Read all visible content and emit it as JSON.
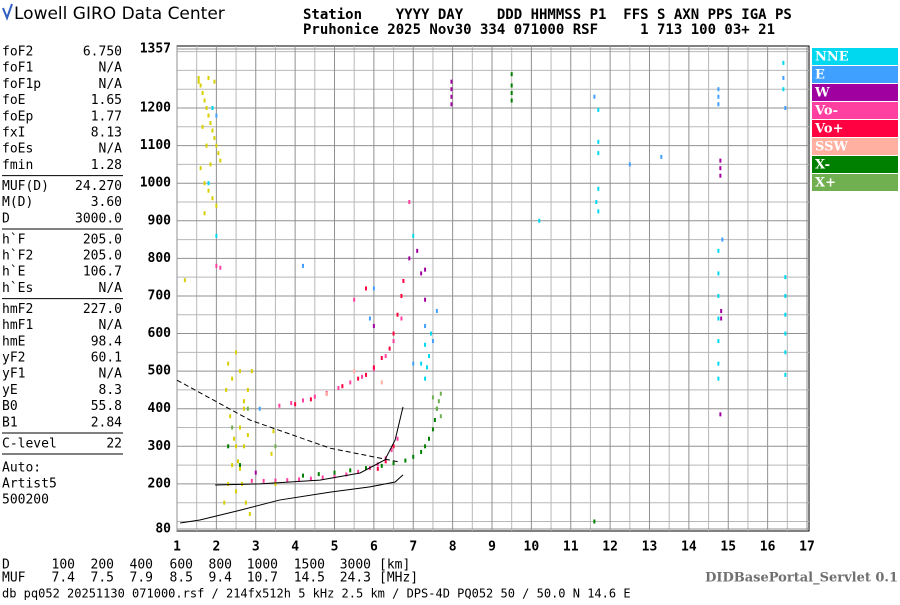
{
  "header": {
    "logo": "Lowell GIRO Data Center",
    "line1": "Station    YYYY DAY    DDD HHMMSS P1  FFS S AXN PPS IGA PS",
    "line2": "Pruhonice 2025 Nov30 334 071000 RSF     1 713 100 03+ 21"
  },
  "parameter_groups": [
    [
      {
        "name": "foF2",
        "value": "6.750"
      },
      {
        "name": "foF1",
        "value": "N/A"
      },
      {
        "name": "foF1p",
        "value": "N/A"
      },
      {
        "name": "foE",
        "value": "1.65"
      },
      {
        "name": "foEp",
        "value": "1.77"
      },
      {
        "name": "fxI",
        "value": "8.13"
      },
      {
        "name": "foEs",
        "value": "N/A"
      },
      {
        "name": "fmin",
        "value": "1.28"
      }
    ],
    [
      {
        "name": "MUF(D)",
        "value": "24.270"
      },
      {
        "name": "M(D)",
        "value": "3.60"
      },
      {
        "name": "D",
        "value": "3000.0"
      }
    ],
    [
      {
        "name": "h`F",
        "value": "205.0"
      },
      {
        "name": "h`F2",
        "value": "205.0"
      },
      {
        "name": "h`E",
        "value": "106.7"
      },
      {
        "name": "h`Es",
        "value": "N/A"
      }
    ],
    [
      {
        "name": "hmF2",
        "value": "227.0"
      },
      {
        "name": "hmF1",
        "value": "N/A"
      },
      {
        "name": "hmE",
        "value": "98.4"
      },
      {
        "name": "yF2",
        "value": "60.1"
      },
      {
        "name": "yF1",
        "value": "N/A"
      },
      {
        "name": "yE",
        "value": "8.3"
      },
      {
        "name": "B0",
        "value": "55.8"
      },
      {
        "name": "B1",
        "value": "2.84"
      }
    ],
    [
      {
        "name": "C-level",
        "value": "22"
      }
    ]
  ],
  "auto": [
    "Auto:",
    "Artist5",
    "500200"
  ],
  "distance_row": {
    "label": "D",
    "values": [
      "100",
      "200",
      "400",
      "600",
      "800",
      "1000",
      "1500",
      "3000"
    ],
    "unit": "[km]"
  },
  "muf_row": {
    "label": "MUF",
    "values": [
      "7.4",
      "7.5",
      "7.9",
      "8.5",
      "9.4",
      "10.7",
      "14.5",
      "24.3"
    ],
    "unit": "[MHz]"
  },
  "footer": "db pq052 20251130 071000.rsf / 214fx512h 5 kHz 2.5 km / DPS-4D PQ052 50 / 50.0 N 14.6 E",
  "servlet": "DIDBasePortal_Servlet 0.1",
  "chart_data": {
    "type": "scatter",
    "xlim": [
      1,
      17
    ],
    "xticks": [
      1,
      2,
      3,
      4,
      5,
      6,
      7,
      8,
      9,
      10,
      11,
      12,
      13,
      14,
      15,
      16,
      17
    ],
    "xgrid": [
      1.5,
      2.5,
      3.5,
      4.5,
      5.5,
      6.5,
      7.5,
      8.5,
      9.5,
      10.5,
      11.5,
      12.5,
      13.5,
      14.5,
      15.5,
      16.5
    ],
    "ylim": [
      80,
      1357
    ],
    "yticks": [
      80,
      200,
      300,
      400,
      500,
      600,
      700,
      800,
      900,
      1000,
      1100,
      1200,
      1357
    ],
    "ygrid": [
      100,
      150,
      250,
      350,
      450,
      550,
      650,
      750,
      850,
      950,
      1050,
      1150,
      1250,
      1300,
      1350
    ],
    "grid": true,
    "series": [
      {
        "name": "NNE",
        "color": "#00d8f0",
        "x": [
          11.7,
          11.7,
          11.7,
          11.7,
          11.65,
          11.7,
          14.75,
          14.75,
          14.75,
          14.75,
          14.75,
          14.75,
          14.75,
          16.45,
          16.45,
          16.45,
          16.45,
          16.45,
          16.45,
          16.4,
          16.4,
          7.3,
          7.35,
          7.4,
          7.3,
          7.2,
          7.45,
          1.9,
          2.0,
          1.8,
          10.2,
          7.0
        ],
        "y": [
          1195,
          1110,
          1080,
          985,
          950,
          925,
          820,
          760,
          700,
          640,
          580,
          520,
          480,
          750,
          700,
          650,
          600,
          550,
          490,
          1320,
          1250,
          480,
          510,
          540,
          570,
          520,
          600,
          1200,
          860,
          1000,
          900,
          860
        ]
      },
      {
        "name": "E",
        "color": "#40a0ff",
        "x": [
          14.75,
          14.75,
          14.75,
          16.4,
          16.45,
          7.3,
          7.5,
          7.6,
          7.0,
          2.0,
          3.1,
          6.0,
          4.2,
          5.9,
          11.6,
          14.85,
          12.5,
          13.3
        ],
        "y": [
          1230,
          1250,
          1210,
          1280,
          1200,
          620,
          580,
          660,
          520,
          1180,
          400,
          720,
          780,
          640,
          1230,
          850,
          1050,
          1070
        ]
      },
      {
        "name": "W",
        "color": "#a000a0",
        "x": [
          7.97,
          7.97,
          7.97,
          7.97,
          14.8,
          14.8,
          14.8,
          14.82,
          14.82,
          14.8,
          7.1,
          7.2,
          7.3,
          6.9,
          3.0,
          7.3,
          6.0
        ],
        "y": [
          1270,
          1250,
          1230,
          1210,
          1060,
          1040,
          1020,
          660,
          640,
          385,
          820,
          760,
          690,
          800,
          230,
          770,
          620
        ]
      },
      {
        "name": "Vo-",
        "color": "#ff40a0",
        "x": [
          2.9,
          3.2,
          3.5,
          3.8,
          4.1,
          4.4,
          4.7,
          5.0,
          5.3,
          5.6,
          5.9,
          6.1,
          6.3,
          6.45,
          6.6,
          3.6,
          3.9,
          4.2,
          4.5,
          4.8,
          5.1,
          5.4,
          5.7,
          6.0,
          6.3,
          6.5,
          6.7,
          5.5,
          6.9,
          2.0,
          2.1
        ],
        "y": [
          208,
          208,
          209,
          210,
          212,
          214,
          217,
          220,
          225,
          232,
          242,
          252,
          268,
          290,
          320,
          408,
          415,
          422,
          432,
          442,
          455,
          470,
          485,
          505,
          540,
          580,
          640,
          690,
          950,
          780,
          775
        ]
      },
      {
        "name": "Vo+",
        "color": "#ff0040",
        "x": [
          4.0,
          4.4,
          4.8,
          5.2,
          5.6,
          5.8,
          6.0,
          6.2,
          6.4,
          6.5,
          6.6,
          6.7,
          6.75,
          6.1,
          6.3,
          5.8,
          6.5
        ],
        "y": [
          412,
          425,
          440,
          460,
          480,
          490,
          510,
          535,
          560,
          600,
          650,
          700,
          740,
          240,
          260,
          720,
          300
        ]
      },
      {
        "name": "SSW",
        "color": "#ffb0a0",
        "x": [
          5.5,
          6.2,
          4.8
        ],
        "y": [
          500,
          470,
          440
        ]
      },
      {
        "name": "X-",
        "color": "#008000",
        "x": [
          4.2,
          4.6,
          5.0,
          5.4,
          5.8,
          6.2,
          6.5,
          6.8,
          7.0,
          7.2,
          7.3,
          7.4,
          7.5,
          7.55,
          7.6,
          9.5,
          9.5,
          9.5,
          9.5,
          2.3,
          2.6,
          11.6
        ],
        "y": [
          222,
          226,
          230,
          236,
          242,
          248,
          255,
          262,
          272,
          285,
          300,
          320,
          345,
          370,
          400,
          1290,
          1260,
          1240,
          1220,
          300,
          250,
          100
        ]
      },
      {
        "name": "X+",
        "color": "#70b050",
        "x": [
          7.65,
          7.7,
          7.6,
          7.7,
          7.5,
          2.4,
          2.8,
          3.5
        ],
        "y": [
          420,
          440,
          400,
          380,
          430,
          350,
          400,
          300
        ]
      },
      {
        "color": "#d8d000",
        "x": [
          1.55,
          1.6,
          1.65,
          1.7,
          1.75,
          1.8,
          1.85,
          1.9,
          1.95,
          2.0,
          2.05,
          2.1,
          1.6,
          1.7,
          1.8,
          1.9,
          2.0,
          1.65,
          1.75,
          1.85,
          1.95,
          1.55,
          1.7,
          1.8,
          2.2,
          2.3,
          2.4,
          2.5,
          2.6,
          2.7,
          2.8,
          2.9,
          2.25,
          2.35,
          2.45,
          2.55,
          2.65,
          2.75,
          2.85,
          2.3,
          2.4,
          2.5,
          2.6,
          2.7,
          2.8,
          2.5,
          2.6,
          2.7,
          3.4,
          3.45,
          3.5,
          1.2
        ],
        "y": [
          1280,
          1260,
          1240,
          1220,
          1200,
          1180,
          1160,
          1140,
          1120,
          1100,
          1080,
          1060,
          1040,
          1000,
          980,
          960,
          940,
          1150,
          1100,
          1050,
          1270,
          1270,
          920,
          1280,
          150,
          200,
          250,
          300,
          350,
          400,
          450,
          500,
          450,
          380,
          320,
          260,
          200,
          150,
          120,
          520,
          480,
          550,
          500,
          420,
          330,
          180,
          240,
          300,
          280,
          340,
          200,
          742
        ]
      }
    ],
    "lines": [
      {
        "style": "solid",
        "x": [
          1.08,
          1.58,
          2.6,
          3.6,
          4.89,
          5.9,
          6.54,
          6.74
        ],
        "y": [
          96,
          104,
          130,
          157,
          178,
          192,
          205,
          224
        ]
      },
      {
        "style": "solid",
        "x": [
          1.97,
          3.1,
          4.63,
          5.65,
          6.28,
          6.54,
          6.74
        ],
        "y": [
          197,
          200,
          210,
          229,
          264,
          317,
          405
        ]
      },
      {
        "style": "dashed",
        "x": [
          1,
          2.85,
          4.89,
          6.66
        ],
        "y": [
          476,
          370,
          295,
          258
        ]
      }
    ]
  }
}
